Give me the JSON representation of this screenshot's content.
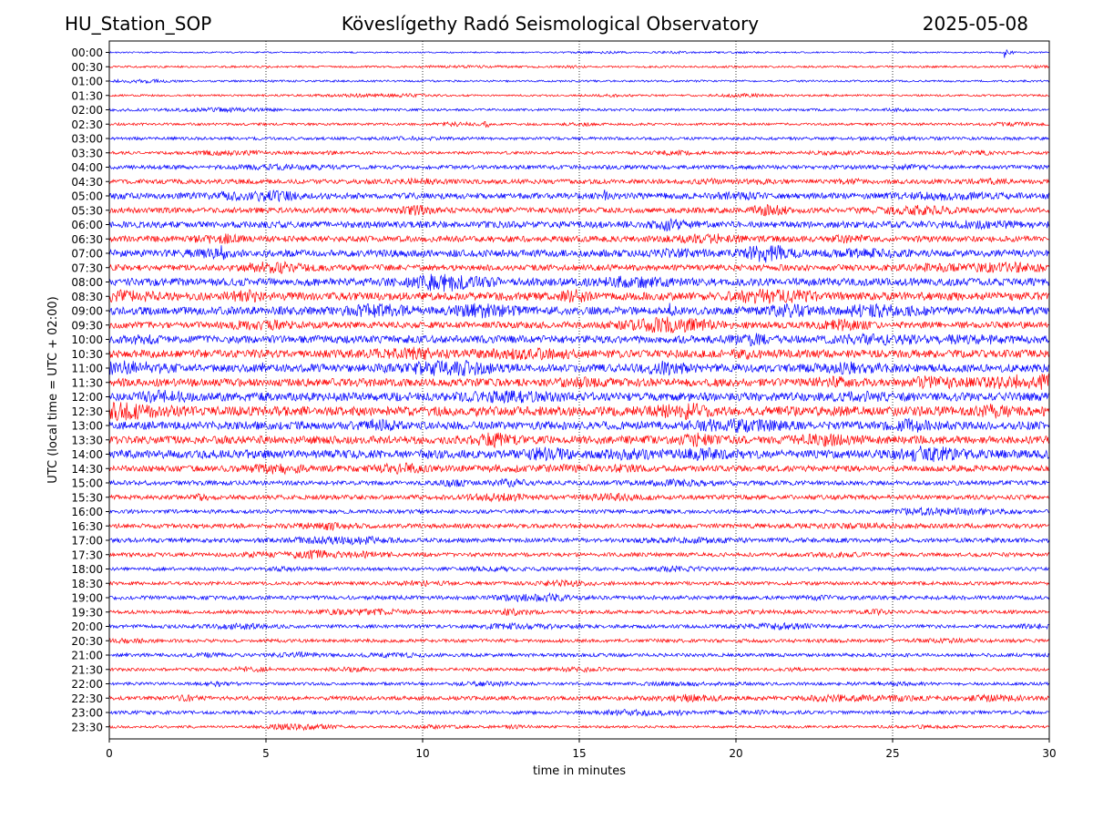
{
  "header": {
    "station": "HU_Station_SOP",
    "observatory": "Köveslígethy Radó Seismological Observatory",
    "date": "2025-05-08"
  },
  "chart_data": {
    "type": "line",
    "xlabel": "time in minutes",
    "ylabel": "UTC (local time = UTC + 02:00)",
    "xlim": [
      0,
      30
    ],
    "x_ticks": [
      0,
      5,
      10,
      15,
      20,
      25,
      30
    ],
    "vertical_grid": true,
    "grid_style": "dotted",
    "row_labels": [
      "00:00",
      "00:30",
      "01:00",
      "01:30",
      "02:00",
      "02:30",
      "03:00",
      "03:30",
      "04:00",
      "04:30",
      "05:00",
      "05:30",
      "06:00",
      "06:30",
      "07:00",
      "07:30",
      "08:00",
      "08:30",
      "09:00",
      "09:30",
      "10:00",
      "10:30",
      "11:00",
      "11:30",
      "12:00",
      "12:30",
      "13:00",
      "13:30",
      "14:00",
      "14:30",
      "15:00",
      "15:30",
      "16:00",
      "16:30",
      "17:00",
      "17:30",
      "18:00",
      "18:30",
      "19:00",
      "19:30",
      "20:00",
      "20:30",
      "21:00",
      "21:30",
      "22:00",
      "22:30",
      "23:00",
      "23:30"
    ],
    "row_colors": [
      "#0000ff",
      "#ff0000"
    ],
    "noise_level": [
      0.15,
      0.2,
      0.2,
      0.2,
      0.25,
      0.25,
      0.3,
      0.3,
      0.4,
      0.45,
      0.6,
      0.55,
      0.65,
      0.6,
      0.7,
      0.6,
      0.75,
      0.8,
      0.8,
      0.65,
      0.75,
      0.8,
      0.8,
      0.8,
      0.85,
      0.95,
      0.8,
      0.8,
      0.85,
      0.6,
      0.45,
      0.45,
      0.4,
      0.45,
      0.45,
      0.4,
      0.35,
      0.35,
      0.4,
      0.35,
      0.35,
      0.35,
      0.35,
      0.3,
      0.3,
      0.4,
      0.35,
      0.25
    ],
    "events": [
      {
        "row": "00:00",
        "minute": 28.6,
        "amplitude": 1.6
      },
      {
        "row": "02:30",
        "minute": 12.0,
        "amplitude": 1.2
      },
      {
        "row": "05:00",
        "minute": 15.8,
        "amplitude": 1.3
      },
      {
        "row": "07:00",
        "minute": 3.6,
        "amplitude": 1.3
      },
      {
        "row": "09:00",
        "minute": 17.9,
        "amplitude": 1.3
      },
      {
        "row": "11:00",
        "minute": 4.9,
        "amplitude": 1.2
      },
      {
        "row": "11:30",
        "minute": 28.9,
        "amplitude": 1.3
      },
      {
        "row": "12:30",
        "minute": 11.6,
        "amplitude": 1.4
      }
    ]
  }
}
